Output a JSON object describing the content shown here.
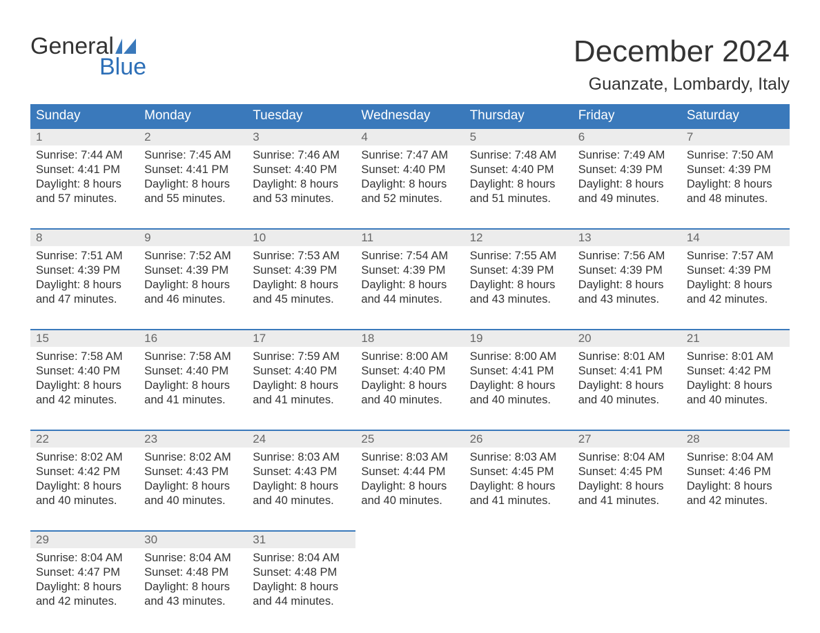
{
  "brand": {
    "top": "General",
    "bottom": "Blue",
    "top_color": "#333333",
    "bottom_color": "#2d6fb7",
    "icon_color": "#3a79bb"
  },
  "header": {
    "month_title": "December 2024",
    "location": "Guanzate, Lombardy, Italy"
  },
  "colors": {
    "header_bg": "#3a79bb",
    "header_text": "#ffffff",
    "daynum_bg": "#ececec",
    "daynum_border": "#3a79bb",
    "daynum_text": "#666666",
    "body_text": "#333333",
    "page_bg": "#ffffff"
  },
  "typography": {
    "month_title_fontsize": 44,
    "location_fontsize": 25,
    "dayheader_fontsize": 19,
    "daynum_fontsize": 17,
    "content_fontsize": 16.5,
    "logo_fontsize": 34
  },
  "day_headers": [
    "Sunday",
    "Monday",
    "Tuesday",
    "Wednesday",
    "Thursday",
    "Friday",
    "Saturday"
  ],
  "labels": {
    "sunrise": "Sunrise:",
    "sunset": "Sunset:",
    "daylight_prefix": "Daylight:",
    "and": "and",
    "hours": "hours",
    "minutes": "minutes."
  },
  "weeks": [
    [
      {
        "num": "1",
        "sunrise": "7:44 AM",
        "sunset": "4:41 PM",
        "dl_h": "8",
        "dl_m": "57"
      },
      {
        "num": "2",
        "sunrise": "7:45 AM",
        "sunset": "4:41 PM",
        "dl_h": "8",
        "dl_m": "55"
      },
      {
        "num": "3",
        "sunrise": "7:46 AM",
        "sunset": "4:40 PM",
        "dl_h": "8",
        "dl_m": "53"
      },
      {
        "num": "4",
        "sunrise": "7:47 AM",
        "sunset": "4:40 PM",
        "dl_h": "8",
        "dl_m": "52"
      },
      {
        "num": "5",
        "sunrise": "7:48 AM",
        "sunset": "4:40 PM",
        "dl_h": "8",
        "dl_m": "51"
      },
      {
        "num": "6",
        "sunrise": "7:49 AM",
        "sunset": "4:39 PM",
        "dl_h": "8",
        "dl_m": "49"
      },
      {
        "num": "7",
        "sunrise": "7:50 AM",
        "sunset": "4:39 PM",
        "dl_h": "8",
        "dl_m": "48"
      }
    ],
    [
      {
        "num": "8",
        "sunrise": "7:51 AM",
        "sunset": "4:39 PM",
        "dl_h": "8",
        "dl_m": "47"
      },
      {
        "num": "9",
        "sunrise": "7:52 AM",
        "sunset": "4:39 PM",
        "dl_h": "8",
        "dl_m": "46"
      },
      {
        "num": "10",
        "sunrise": "7:53 AM",
        "sunset": "4:39 PM",
        "dl_h": "8",
        "dl_m": "45"
      },
      {
        "num": "11",
        "sunrise": "7:54 AM",
        "sunset": "4:39 PM",
        "dl_h": "8",
        "dl_m": "44"
      },
      {
        "num": "12",
        "sunrise": "7:55 AM",
        "sunset": "4:39 PM",
        "dl_h": "8",
        "dl_m": "43"
      },
      {
        "num": "13",
        "sunrise": "7:56 AM",
        "sunset": "4:39 PM",
        "dl_h": "8",
        "dl_m": "43"
      },
      {
        "num": "14",
        "sunrise": "7:57 AM",
        "sunset": "4:39 PM",
        "dl_h": "8",
        "dl_m": "42"
      }
    ],
    [
      {
        "num": "15",
        "sunrise": "7:58 AM",
        "sunset": "4:40 PM",
        "dl_h": "8",
        "dl_m": "42"
      },
      {
        "num": "16",
        "sunrise": "7:58 AM",
        "sunset": "4:40 PM",
        "dl_h": "8",
        "dl_m": "41"
      },
      {
        "num": "17",
        "sunrise": "7:59 AM",
        "sunset": "4:40 PM",
        "dl_h": "8",
        "dl_m": "41"
      },
      {
        "num": "18",
        "sunrise": "8:00 AM",
        "sunset": "4:40 PM",
        "dl_h": "8",
        "dl_m": "40"
      },
      {
        "num": "19",
        "sunrise": "8:00 AM",
        "sunset": "4:41 PM",
        "dl_h": "8",
        "dl_m": "40"
      },
      {
        "num": "20",
        "sunrise": "8:01 AM",
        "sunset": "4:41 PM",
        "dl_h": "8",
        "dl_m": "40"
      },
      {
        "num": "21",
        "sunrise": "8:01 AM",
        "sunset": "4:42 PM",
        "dl_h": "8",
        "dl_m": "40"
      }
    ],
    [
      {
        "num": "22",
        "sunrise": "8:02 AM",
        "sunset": "4:42 PM",
        "dl_h": "8",
        "dl_m": "40"
      },
      {
        "num": "23",
        "sunrise": "8:02 AM",
        "sunset": "4:43 PM",
        "dl_h": "8",
        "dl_m": "40"
      },
      {
        "num": "24",
        "sunrise": "8:03 AM",
        "sunset": "4:43 PM",
        "dl_h": "8",
        "dl_m": "40"
      },
      {
        "num": "25",
        "sunrise": "8:03 AM",
        "sunset": "4:44 PM",
        "dl_h": "8",
        "dl_m": "40"
      },
      {
        "num": "26",
        "sunrise": "8:03 AM",
        "sunset": "4:45 PM",
        "dl_h": "8",
        "dl_m": "41"
      },
      {
        "num": "27",
        "sunrise": "8:04 AM",
        "sunset": "4:45 PM",
        "dl_h": "8",
        "dl_m": "41"
      },
      {
        "num": "28",
        "sunrise": "8:04 AM",
        "sunset": "4:46 PM",
        "dl_h": "8",
        "dl_m": "42"
      }
    ],
    [
      {
        "num": "29",
        "sunrise": "8:04 AM",
        "sunset": "4:47 PM",
        "dl_h": "8",
        "dl_m": "42"
      },
      {
        "num": "30",
        "sunrise": "8:04 AM",
        "sunset": "4:48 PM",
        "dl_h": "8",
        "dl_m": "43"
      },
      {
        "num": "31",
        "sunrise": "8:04 AM",
        "sunset": "4:48 PM",
        "dl_h": "8",
        "dl_m": "44"
      },
      null,
      null,
      null,
      null
    ]
  ]
}
